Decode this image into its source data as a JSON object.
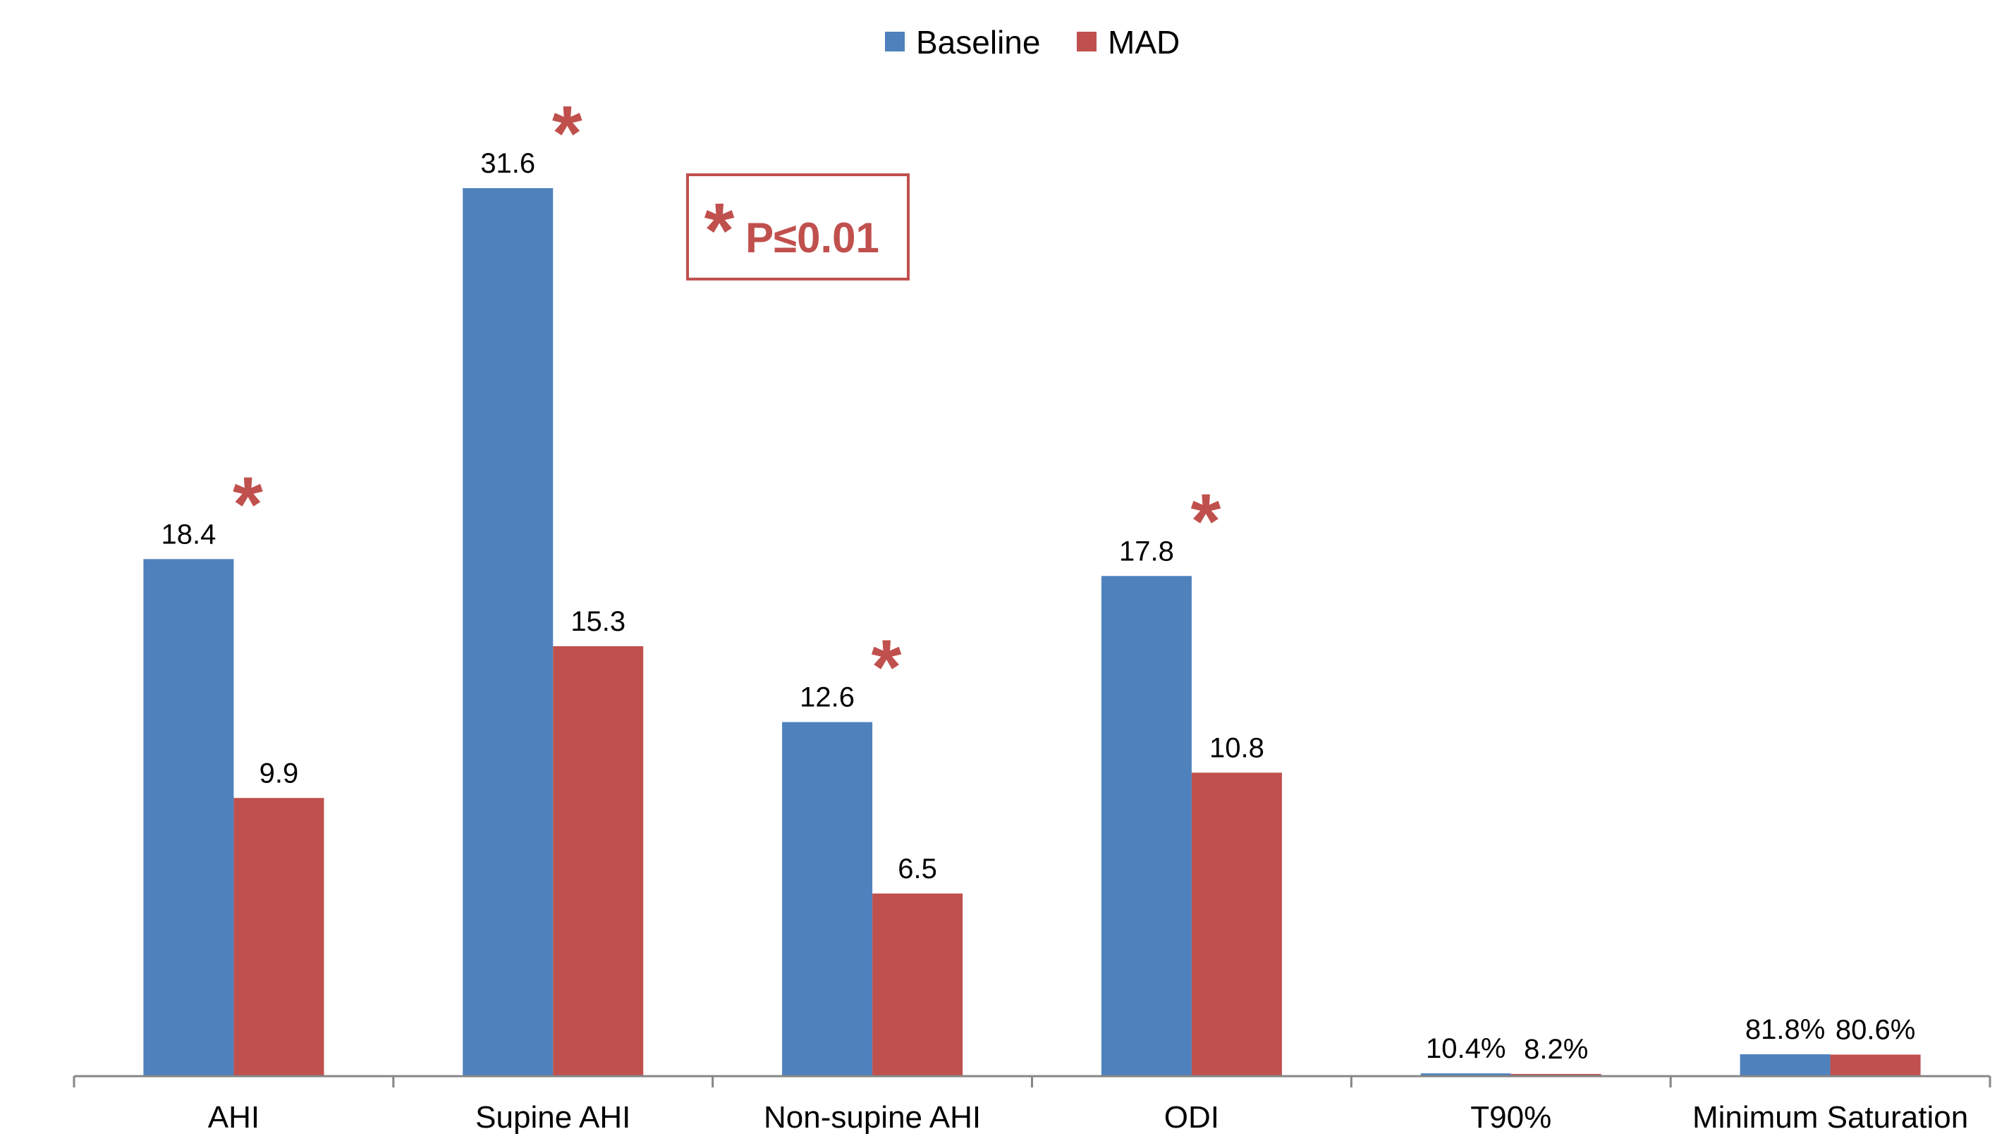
{
  "chart_data": {
    "type": "bar",
    "categories": [
      "AHI",
      "Supine AHI",
      "Non-supine AHI",
      "ODI",
      "T90%",
      "Minimum Saturation"
    ],
    "series": [
      {
        "name": "Baseline",
        "color": "#4f81bd",
        "values": [
          18.4,
          31.6,
          12.6,
          17.8,
          0.104,
          0.818
        ],
        "labels": [
          "18.4",
          "31.6",
          "12.6",
          "17.8",
          "10.4%",
          "81.8%"
        ]
      },
      {
        "name": "MAD",
        "color": "#c0504d",
        "values": [
          9.9,
          15.3,
          6.5,
          10.8,
          0.082,
          0.806
        ],
        "labels": [
          "9.9",
          "15.3",
          "6.5",
          "10.8",
          "8.2%",
          "80.6%"
        ]
      }
    ],
    "significant": [
      true,
      true,
      true,
      true,
      false,
      false
    ],
    "significance_symbol": "*",
    "annotation": {
      "symbol": "*",
      "text": "P≤0.01",
      "color": "#c0504d"
    },
    "ylim": [
      0,
      35
    ],
    "grid": false,
    "legend": "top-center",
    "title": "",
    "xlabel": "",
    "ylabel": ""
  }
}
